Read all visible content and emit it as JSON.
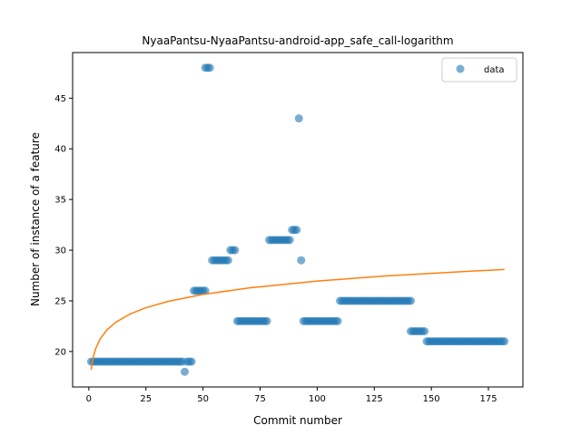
{
  "chart_data": {
    "type": "scatter",
    "title": "NyaaPantsu-NyaaPantsu-android-app_safe_call-logarithm",
    "xlabel": "Commit number",
    "ylabel": "Number of instance of a feature",
    "xlim": [
      -7.1,
      190.1
    ],
    "ylim": [
      16.5,
      49.5
    ],
    "xticks": [
      0,
      25,
      50,
      75,
      100,
      125,
      150,
      175
    ],
    "yticks": [
      20,
      25,
      30,
      35,
      40,
      45
    ],
    "grid": false,
    "legend": {
      "position": "top-right",
      "entries": [
        "data"
      ]
    },
    "colors": {
      "data": "#1f77b4",
      "fit": "#ff7f0e"
    },
    "series": [
      {
        "name": "data",
        "kind": "scatter",
        "points": [
          [
            1,
            19
          ],
          [
            2,
            19
          ],
          [
            3,
            19
          ],
          [
            4,
            19
          ],
          [
            5,
            19
          ],
          [
            6,
            19
          ],
          [
            7,
            19
          ],
          [
            8,
            19
          ],
          [
            9,
            19
          ],
          [
            10,
            19
          ],
          [
            11,
            19
          ],
          [
            12,
            19
          ],
          [
            13,
            19
          ],
          [
            14,
            19
          ],
          [
            15,
            19
          ],
          [
            16,
            19
          ],
          [
            17,
            19
          ],
          [
            18,
            19
          ],
          [
            19,
            19
          ],
          [
            20,
            19
          ],
          [
            21,
            19
          ],
          [
            22,
            19
          ],
          [
            23,
            19
          ],
          [
            24,
            19
          ],
          [
            25,
            19
          ],
          [
            26,
            19
          ],
          [
            27,
            19
          ],
          [
            28,
            19
          ],
          [
            29,
            19
          ],
          [
            30,
            19
          ],
          [
            31,
            19
          ],
          [
            32,
            19
          ],
          [
            33,
            19
          ],
          [
            34,
            19
          ],
          [
            35,
            19
          ],
          [
            36,
            19
          ],
          [
            37,
            19
          ],
          [
            38,
            19
          ],
          [
            39,
            19
          ],
          [
            40,
            19
          ],
          [
            41,
            19
          ],
          [
            42,
            18
          ],
          [
            43,
            19
          ],
          [
            44,
            19
          ],
          [
            45,
            19
          ],
          [
            46,
            26
          ],
          [
            47,
            26
          ],
          [
            48,
            26
          ],
          [
            49,
            26
          ],
          [
            50,
            26
          ],
          [
            51,
            26
          ],
          [
            51,
            48
          ],
          [
            52,
            48
          ],
          [
            53,
            48
          ],
          [
            54,
            29
          ],
          [
            55,
            29
          ],
          [
            56,
            29
          ],
          [
            57,
            29
          ],
          [
            58,
            29
          ],
          [
            59,
            29
          ],
          [
            60,
            29
          ],
          [
            61,
            29
          ],
          [
            62,
            30
          ],
          [
            63,
            30
          ],
          [
            64,
            30
          ],
          [
            65,
            23
          ],
          [
            66,
            23
          ],
          [
            67,
            23
          ],
          [
            68,
            23
          ],
          [
            69,
            23
          ],
          [
            70,
            23
          ],
          [
            71,
            23
          ],
          [
            72,
            23
          ],
          [
            73,
            23
          ],
          [
            74,
            23
          ],
          [
            75,
            23
          ],
          [
            76,
            23
          ],
          [
            77,
            23
          ],
          [
            78,
            23
          ],
          [
            79,
            31
          ],
          [
            80,
            31
          ],
          [
            81,
            31
          ],
          [
            82,
            31
          ],
          [
            83,
            31
          ],
          [
            84,
            31
          ],
          [
            85,
            31
          ],
          [
            86,
            31
          ],
          [
            87,
            31
          ],
          [
            88,
            31
          ],
          [
            89,
            32
          ],
          [
            90,
            32
          ],
          [
            91,
            32
          ],
          [
            92,
            43
          ],
          [
            93,
            29
          ],
          [
            94,
            23
          ],
          [
            95,
            23
          ],
          [
            96,
            23
          ],
          [
            97,
            23
          ],
          [
            98,
            23
          ],
          [
            99,
            23
          ],
          [
            100,
            23
          ],
          [
            101,
            23
          ],
          [
            102,
            23
          ],
          [
            103,
            23
          ],
          [
            104,
            23
          ],
          [
            105,
            23
          ],
          [
            106,
            23
          ],
          [
            107,
            23
          ],
          [
            108,
            23
          ],
          [
            109,
            23
          ],
          [
            110,
            25
          ],
          [
            111,
            25
          ],
          [
            112,
            25
          ],
          [
            113,
            25
          ],
          [
            114,
            25
          ],
          [
            115,
            25
          ],
          [
            116,
            25
          ],
          [
            117,
            25
          ],
          [
            118,
            25
          ],
          [
            119,
            25
          ],
          [
            120,
            25
          ],
          [
            121,
            25
          ],
          [
            122,
            25
          ],
          [
            123,
            25
          ],
          [
            124,
            25
          ],
          [
            125,
            25
          ],
          [
            126,
            25
          ],
          [
            127,
            25
          ],
          [
            128,
            25
          ],
          [
            129,
            25
          ],
          [
            130,
            25
          ],
          [
            131,
            25
          ],
          [
            132,
            25
          ],
          [
            133,
            25
          ],
          [
            134,
            25
          ],
          [
            135,
            25
          ],
          [
            136,
            25
          ],
          [
            137,
            25
          ],
          [
            138,
            25
          ],
          [
            139,
            25
          ],
          [
            140,
            25
          ],
          [
            141,
            25
          ],
          [
            141,
            22
          ],
          [
            142,
            22
          ],
          [
            143,
            22
          ],
          [
            144,
            22
          ],
          [
            145,
            22
          ],
          [
            146,
            22
          ],
          [
            147,
            22
          ],
          [
            148,
            21
          ],
          [
            149,
            21
          ],
          [
            150,
            21
          ],
          [
            151,
            21
          ],
          [
            152,
            21
          ],
          [
            153,
            21
          ],
          [
            154,
            21
          ],
          [
            155,
            21
          ],
          [
            156,
            21
          ],
          [
            157,
            21
          ],
          [
            158,
            21
          ],
          [
            159,
            21
          ],
          [
            160,
            21
          ],
          [
            161,
            21
          ],
          [
            162,
            21
          ],
          [
            163,
            21
          ],
          [
            164,
            21
          ],
          [
            165,
            21
          ],
          [
            166,
            21
          ],
          [
            167,
            21
          ],
          [
            168,
            21
          ],
          [
            169,
            21
          ],
          [
            170,
            21
          ],
          [
            171,
            21
          ],
          [
            172,
            21
          ],
          [
            173,
            21
          ],
          [
            174,
            21
          ],
          [
            175,
            21
          ],
          [
            176,
            21
          ],
          [
            177,
            21
          ],
          [
            178,
            21
          ],
          [
            179,
            21
          ],
          [
            180,
            21
          ],
          [
            181,
            21
          ],
          [
            182,
            21
          ]
        ]
      },
      {
        "kind": "line",
        "x": [
          1,
          2,
          3,
          5,
          8,
          12,
          18,
          25,
          35,
          50,
          70,
          100,
          130,
          160,
          182
        ],
        "y": [
          18.2,
          19.52,
          20.29,
          21.26,
          22.15,
          22.92,
          23.69,
          24.32,
          24.96,
          25.63,
          26.27,
          26.95,
          27.45,
          27.84,
          28.09
        ]
      }
    ]
  }
}
